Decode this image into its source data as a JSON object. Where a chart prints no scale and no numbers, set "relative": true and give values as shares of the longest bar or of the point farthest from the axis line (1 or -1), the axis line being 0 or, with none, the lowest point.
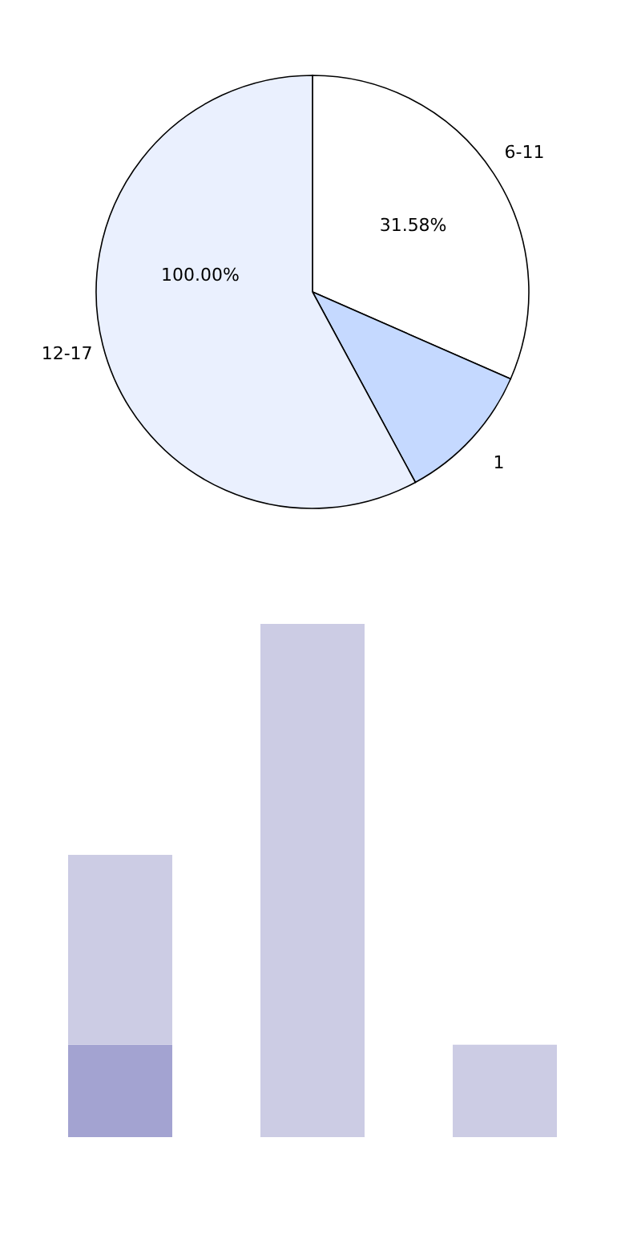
{
  "chart_data": [
    {
      "type": "pie",
      "categories": [
        "6-11",
        "1",
        "12-17"
      ],
      "values": [
        31.58,
        10.53,
        57.89
      ],
      "colors": [
        "#ffffff",
        "#c5d9ff",
        "#eaf0fe"
      ],
      "value_labels": [
        "31.58%",
        null,
        null
      ],
      "annotations": [
        "100.00%"
      ]
    },
    {
      "type": "bar",
      "relative": true,
      "stacked": true,
      "categories": [
        null,
        null,
        null
      ],
      "series": [
        {
          "color": "#a3a3d1",
          "values": [
            0.18,
            null,
            null
          ]
        },
        {
          "color": "#cccce4",
          "values": [
            0.37,
            1,
            0.18
          ]
        }
      ]
    }
  ]
}
